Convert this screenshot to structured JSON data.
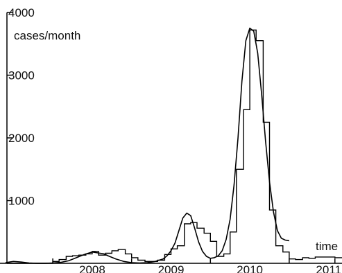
{
  "chart_data": {
    "type": "line",
    "title": "",
    "xlabel": "time",
    "ylabel": "cases/month",
    "ylim": [
      0,
      4000
    ],
    "xlim": [
      2007.33,
      2011.67
    ],
    "x_tick_labels": [
      "2008",
      "2009",
      "2010",
      "2011"
    ],
    "y_tick_labels": [
      "1000",
      "2000",
      "3000",
      "4000"
    ],
    "grid": false,
    "series": [
      {
        "style": "step",
        "x": [
          2007.33,
          2007.42,
          2007.5,
          2007.58,
          2007.67,
          2007.75,
          2007.83,
          2007.92,
          2008.0,
          2008.08,
          2008.17,
          2008.25,
          2008.33,
          2008.42,
          2008.5,
          2008.58,
          2008.67,
          2008.75,
          2008.83,
          2008.92,
          2009.0,
          2009.08,
          2009.17,
          2009.25,
          2009.33,
          2009.42,
          2009.5,
          2009.58,
          2009.67,
          2009.75,
          2009.83,
          2009.92,
          2010.0,
          2010.08,
          2010.17,
          2010.25,
          2010.33,
          2010.42,
          2010.5,
          2010.58,
          2010.67,
          2010.75,
          2010.83,
          2010.92,
          2011.0,
          2011.08,
          2011.17,
          2011.25,
          2011.33,
          2011.42,
          2011.5,
          2011.58
        ],
        "values": [
          0,
          0,
          0,
          0,
          0,
          0,
          0,
          0,
          30,
          60,
          110,
          120,
          130,
          150,
          190,
          130,
          160,
          200,
          220,
          150,
          90,
          50,
          30,
          30,
          50,
          140,
          230,
          280,
          630,
          650,
          560,
          480,
          350,
          110,
          150,
          500,
          1500,
          2450,
          3720,
          3550,
          2250,
          850,
          280,
          180,
          70,
          60,
          90,
          80,
          100,
          100,
          100,
          90
        ]
      },
      {
        "style": "smooth",
        "x": [
          2007.4,
          2007.5,
          2007.6,
          2007.7,
          2007.8,
          2007.9,
          2008.0,
          2008.1,
          2008.2,
          2008.3,
          2008.4,
          2008.5,
          2008.6,
          2008.65,
          2008.7,
          2008.8,
          2008.9,
          2009.0,
          2009.1,
          2009.2,
          2009.3,
          2009.4,
          2009.45,
          2009.5,
          2009.55,
          2009.6,
          2009.65,
          2009.7,
          2009.75,
          2009.8,
          2009.85,
          2009.9,
          2009.95,
          2010.0,
          2010.05,
          2010.1,
          2010.15,
          2010.2,
          2010.25,
          2010.3,
          2010.35,
          2010.4,
          2010.45,
          2010.5,
          2010.55,
          2010.6,
          2010.65,
          2010.7,
          2010.75,
          2010.8,
          2010.85,
          2010.9,
          2010.95,
          2011.0
        ],
        "values": [
          10,
          30,
          20,
          5,
          0,
          0,
          5,
          15,
          40,
          90,
          140,
          180,
          160,
          150,
          120,
          70,
          30,
          10,
          5,
          10,
          30,
          70,
          120,
          200,
          320,
          520,
          720,
          800,
          760,
          560,
          340,
          190,
          110,
          80,
          90,
          120,
          200,
          380,
          700,
          1250,
          2000,
          2900,
          3550,
          3750,
          3700,
          3350,
          2700,
          1950,
          1300,
          820,
          520,
          400,
          370,
          360
        ]
      }
    ]
  }
}
